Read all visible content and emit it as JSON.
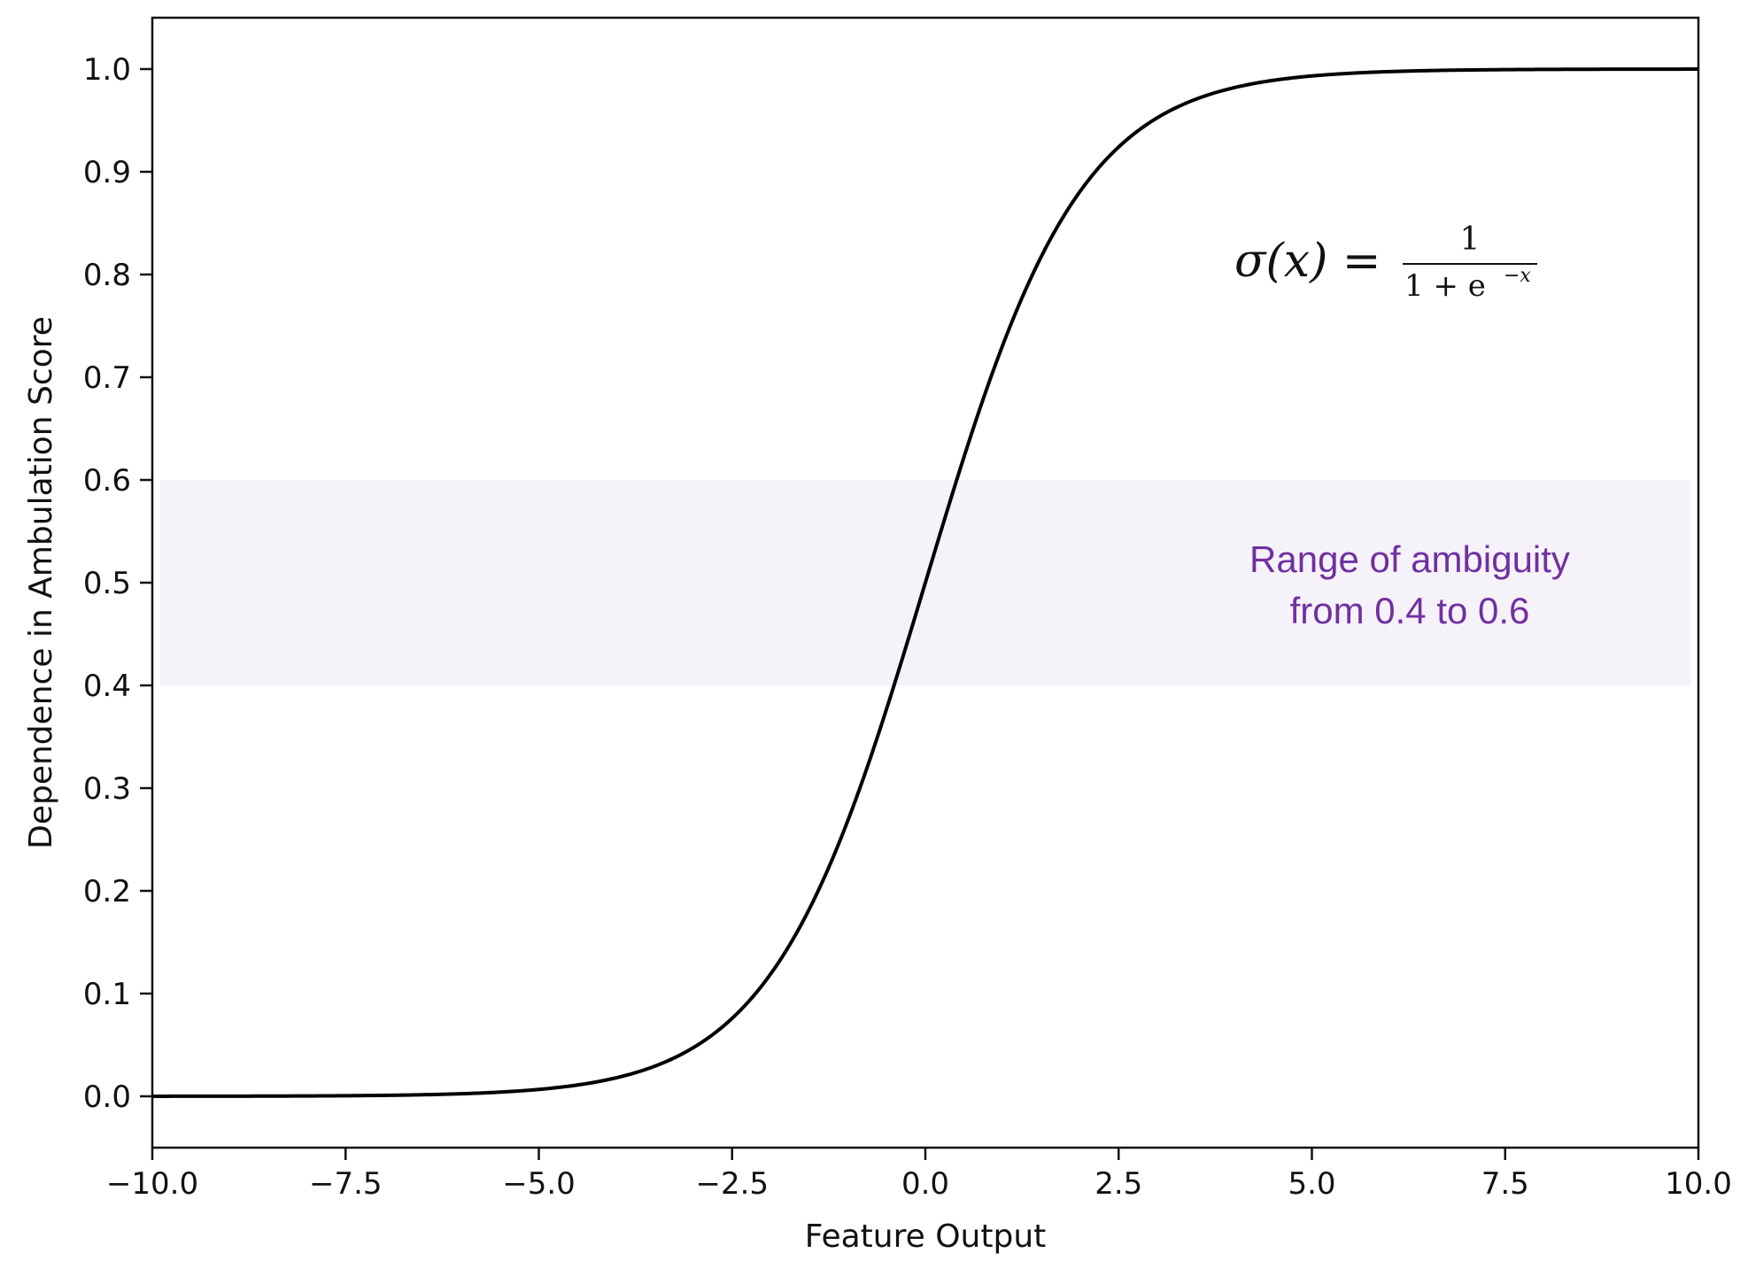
{
  "chart_data": {
    "type": "line",
    "title": "",
    "xlabel": "Feature Output",
    "ylabel": "Dependence in Ambulation Score",
    "xlim": [
      -10,
      10
    ],
    "ylim": [
      -0.05,
      1.05
    ],
    "grid": false,
    "x_ticks": [
      -10,
      -7.5,
      -5,
      -2.5,
      0,
      2.5,
      5,
      7.5,
      10
    ],
    "x_tick_labels": [
      "−10.0",
      "−7.5",
      "−5.0",
      "−2.5",
      "0.0",
      "2.5",
      "5.0",
      "7.5",
      "10.0"
    ],
    "y_ticks": [
      0,
      0.1,
      0.2,
      0.3,
      0.4,
      0.5,
      0.6,
      0.7,
      0.8,
      0.9,
      1.0
    ],
    "y_tick_labels": [
      "0.0",
      "0.1",
      "0.2",
      "0.3",
      "0.4",
      "0.5",
      "0.6",
      "0.7",
      "0.8",
      "0.9",
      "1.0"
    ],
    "series": [
      {
        "function": "sigmoid",
        "color": "#000000",
        "x": [
          -10,
          -9,
          -8,
          -7,
          -6,
          -5,
          -4.5,
          -4,
          -3.5,
          -3,
          -2.5,
          -2,
          -1.5,
          -1,
          -0.5,
          0,
          0.5,
          1,
          1.5,
          2,
          2.5,
          3,
          3.5,
          4,
          4.5,
          5,
          6,
          7,
          8,
          9,
          10
        ],
        "y": [
          0.0,
          0.0001,
          0.0003,
          0.0009,
          0.0025,
          0.0067,
          0.011,
          0.018,
          0.0293,
          0.0474,
          0.0759,
          0.1192,
          0.1824,
          0.2689,
          0.3775,
          0.5,
          0.6225,
          0.7311,
          0.8176,
          0.8808,
          0.9241,
          0.9526,
          0.9707,
          0.982,
          0.989,
          0.9933,
          0.9975,
          0.9991,
          0.9997,
          0.9999,
          1.0
        ]
      }
    ],
    "shaded_band": {
      "y_from": 0.4,
      "y_to": 0.6,
      "x_from": -9.9,
      "x_to": 9.9,
      "color": "#f6f2f9"
    },
    "annotations": {
      "band_label_line1": "Range of ambiguity",
      "band_label_line2": "from 0.4 to 0.6",
      "band_label_color": "#7030a0",
      "formula": {
        "lhs": "σ(x) =",
        "numerator": "1",
        "denominator_base": "1 + e",
        "denominator_exponent": "−x"
      }
    }
  }
}
